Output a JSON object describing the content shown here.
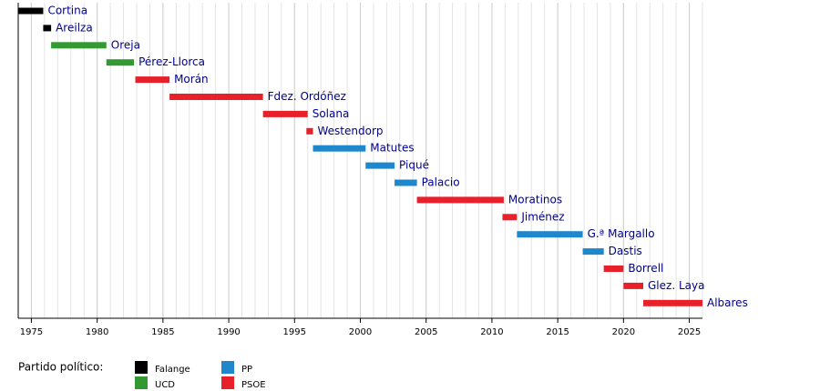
{
  "chart_data": {
    "type": "timeline",
    "xlim": [
      1974,
      2026
    ],
    "xticks": [
      1975,
      1980,
      1985,
      1990,
      1995,
      2000,
      2005,
      2010,
      2015,
      2020,
      2025
    ],
    "grid": true,
    "legend_title": "Partido político:",
    "parties": [
      {
        "name": "Falange",
        "color": "#000000"
      },
      {
        "name": "UCD",
        "color": "#339933"
      },
      {
        "name": "PP",
        "color": "#1f88cc"
      },
      {
        "name": "PSOE",
        "color": "#e8202a"
      }
    ],
    "bars": [
      {
        "name": "Cortina",
        "party": 0,
        "start": 1974.0,
        "end": 1975.9
      },
      {
        "name": "Areilza",
        "party": 0,
        "start": 1975.9,
        "end": 1976.5
      },
      {
        "name": "Oreja",
        "party": 1,
        "start": 1976.5,
        "end": 1980.7
      },
      {
        "name": "Pérez-Llorca",
        "party": 1,
        "start": 1980.7,
        "end": 1982.8
      },
      {
        "name": "Morán",
        "party": 3,
        "start": 1982.9,
        "end": 1985.5
      },
      {
        "name": "Fdez. Ordóñez",
        "party": 3,
        "start": 1985.5,
        "end": 1992.6
      },
      {
        "name": "Solana",
        "party": 3,
        "start": 1992.6,
        "end": 1996.0
      },
      {
        "name": "Westendorp",
        "party": 3,
        "start": 1995.9,
        "end": 1996.4
      },
      {
        "name": "Matutes",
        "party": 2,
        "start": 1996.4,
        "end": 2000.4
      },
      {
        "name": "Piqué",
        "party": 2,
        "start": 2000.4,
        "end": 2002.6
      },
      {
        "name": "Palacio",
        "party": 2,
        "start": 2002.6,
        "end": 2004.3
      },
      {
        "name": "Moratinos",
        "party": 3,
        "start": 2004.3,
        "end": 2010.9
      },
      {
        "name": "Jiménez",
        "party": 3,
        "start": 2010.8,
        "end": 2011.9
      },
      {
        "name": "G.ª Margallo",
        "party": 2,
        "start": 2011.9,
        "end": 2016.9
      },
      {
        "name": "Dastis",
        "party": 2,
        "start": 2016.9,
        "end": 2018.5
      },
      {
        "name": "Borrell",
        "party": 3,
        "start": 2018.5,
        "end": 2020.0
      },
      {
        "name": "Glez. Laya",
        "party": 3,
        "start": 2020.0,
        "end": 2021.5
      },
      {
        "name": "Albares",
        "party": 3,
        "start": 2021.5,
        "end": 2026.0
      }
    ]
  }
}
